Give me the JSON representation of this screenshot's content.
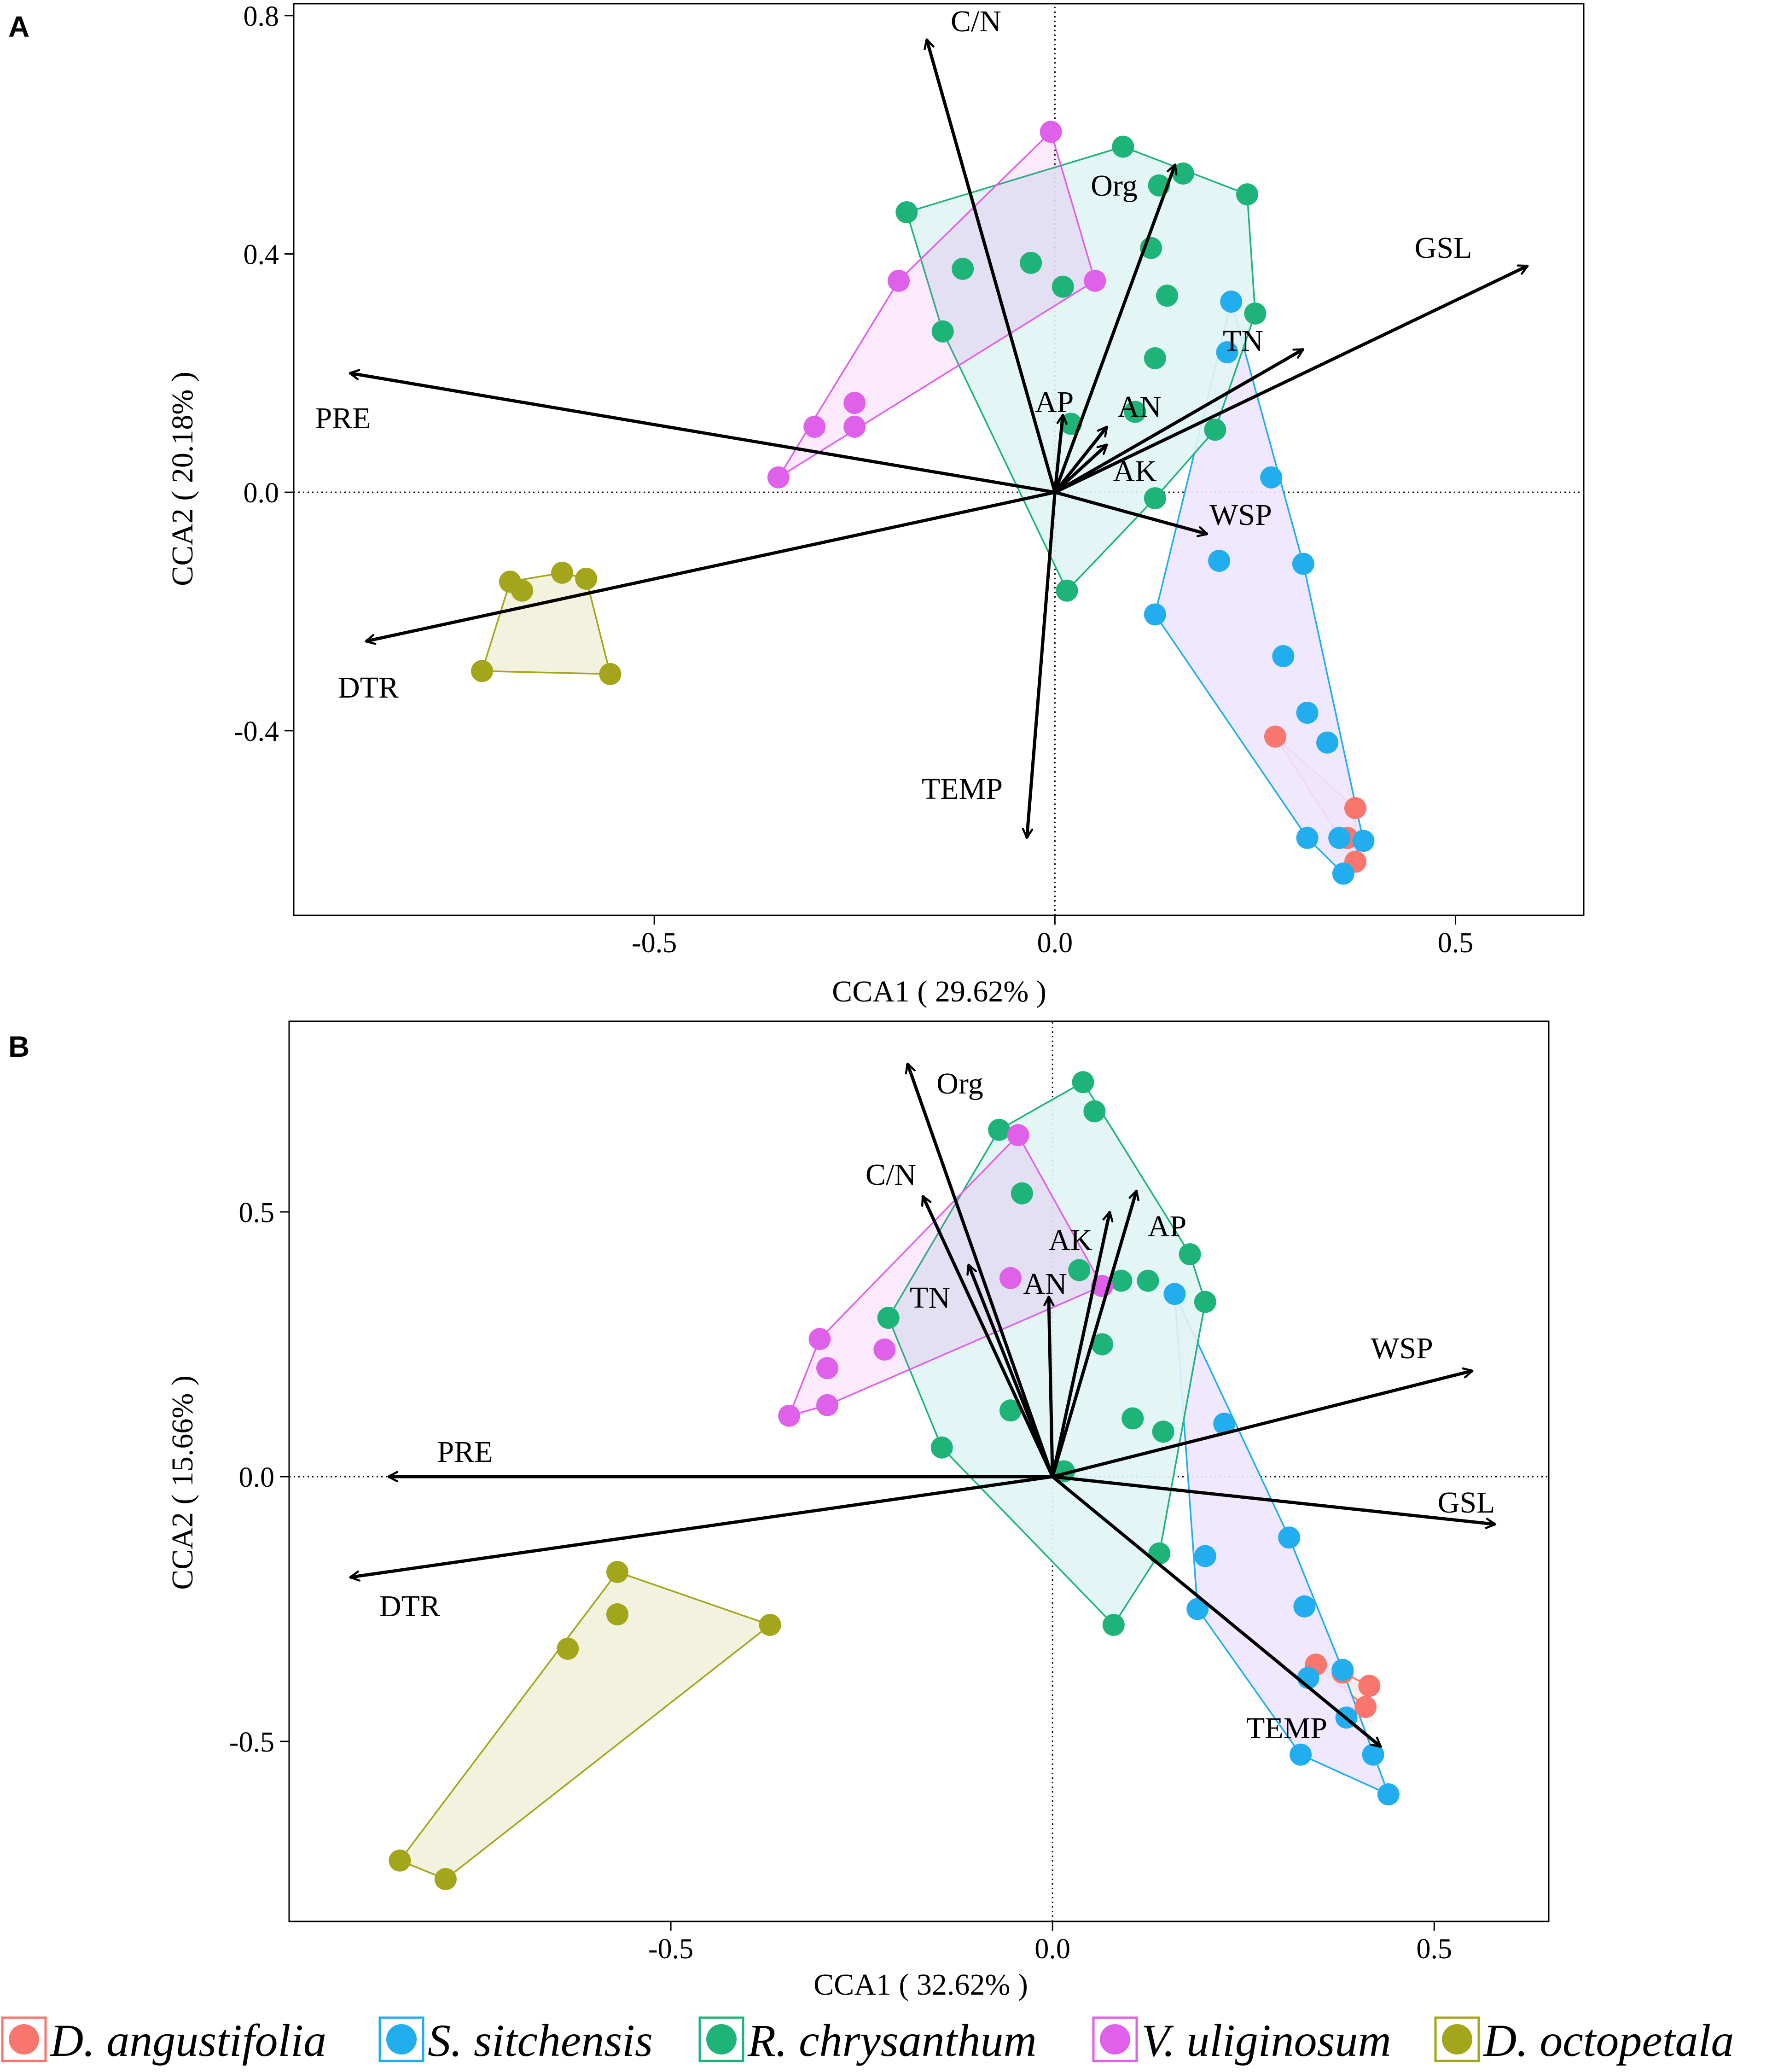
{
  "colors": {
    "D. angustifolia": "#F8766D",
    "S. sitchensis": "#22AEEE",
    "R. chrysanthum": "#1EB479",
    "V. uliginosum": "#E061E9",
    "D. octopetala": "#A3A51A",
    "hull_fill_S. sitchensis": "#ede6ff",
    "hull_fill_R. chrysanthum": "#e1f4f5"
  },
  "legend": {
    "items": [
      {
        "name": "D. angustifolia"
      },
      {
        "name": "S. sitchensis"
      },
      {
        "name": "R. chrysanthum"
      },
      {
        "name": "V. uliginosum"
      },
      {
        "name": "D. octopetala"
      }
    ]
  },
  "chart_data": [
    {
      "panel": "A",
      "type": "scatter",
      "xlabel": "CCA1 ( 29.62% )",
      "ylabel": "CCA2 ( 20.18% )",
      "xlim": [
        -0.95,
        0.66
      ],
      "ylim": [
        -0.71,
        0.82
      ],
      "xticks": [
        {
          "v": -0.5,
          "label": "-0.5"
        },
        {
          "v": 0.0,
          "label": "0.0"
        },
        {
          "v": 0.5,
          "label": "0.5"
        }
      ],
      "yticks": [
        {
          "v": -0.4,
          "label": "-0.4"
        },
        {
          "v": 0.0,
          "label": "0.0"
        },
        {
          "v": 0.4,
          "label": "0.4"
        },
        {
          "v": 0.8,
          "label": "0.8"
        }
      ],
      "vectors": [
        {
          "name": "C/N",
          "x": -0.16,
          "y": 0.76
        },
        {
          "name": "Org",
          "x": 0.15,
          "y": 0.55
        },
        {
          "name": "GSL",
          "x": 0.59,
          "y": 0.38
        },
        {
          "name": "TN",
          "x": 0.31,
          "y": 0.24
        },
        {
          "name": "PRE",
          "x": -0.88,
          "y": 0.2
        },
        {
          "name": "AP",
          "x": 0.01,
          "y": 0.13
        },
        {
          "name": "AN",
          "x": 0.065,
          "y": 0.11
        },
        {
          "name": "AK",
          "x": 0.065,
          "y": 0.08
        },
        {
          "name": "WSP",
          "x": 0.19,
          "y": -0.07
        },
        {
          "name": "DTR",
          "x": -0.86,
          "y": -0.25
        },
        {
          "name": "TEMP",
          "x": -0.035,
          "y": -0.58
        }
      ],
      "series": [
        {
          "name": "D. angustifolia",
          "points": [
            [
              0.275,
              -0.41
            ],
            [
              0.375,
              -0.53
            ],
            [
              0.375,
              -0.62
            ],
            [
              0.365,
              -0.58
            ]
          ]
        },
        {
          "name": "S. sitchensis",
          "points": [
            [
              0.22,
              0.32
            ],
            [
              0.215,
              0.235
            ],
            [
              0.27,
              0.025
            ],
            [
              0.205,
              -0.115
            ],
            [
              0.31,
              -0.12
            ],
            [
              0.125,
              -0.205
            ],
            [
              0.285,
              -0.275
            ],
            [
              0.315,
              -0.37
            ],
            [
              0.34,
              -0.42
            ],
            [
              0.315,
              -0.58
            ],
            [
              0.355,
              -0.58
            ],
            [
              0.385,
              -0.585
            ],
            [
              0.36,
              -0.64
            ]
          ]
        },
        {
          "name": "R. chrysanthum",
          "points": [
            [
              0.085,
              0.58
            ],
            [
              0.16,
              0.535
            ],
            [
              0.13,
              0.515
            ],
            [
              0.24,
              0.5
            ],
            [
              -0.185,
              0.47
            ],
            [
              0.12,
              0.41
            ],
            [
              -0.115,
              0.375
            ],
            [
              -0.03,
              0.385
            ],
            [
              0.01,
              0.345
            ],
            [
              0.14,
              0.33
            ],
            [
              0.25,
              0.3
            ],
            [
              -0.14,
              0.27
            ],
            [
              0.125,
              0.225
            ],
            [
              0.2,
              0.105
            ],
            [
              0.1,
              0.135
            ],
            [
              0.02,
              0.115
            ],
            [
              0.125,
              -0.01
            ],
            [
              0.015,
              -0.165
            ]
          ]
        },
        {
          "name": "V. uliginosum",
          "points": [
            [
              -0.005,
              0.605
            ],
            [
              -0.195,
              0.355
            ],
            [
              0.05,
              0.355
            ],
            [
              -0.25,
              0.15
            ],
            [
              -0.25,
              0.11
            ],
            [
              -0.3,
              0.11
            ],
            [
              -0.345,
              0.025
            ]
          ]
        },
        {
          "name": "D. octopetala",
          "points": [
            [
              -0.68,
              -0.15
            ],
            [
              -0.665,
              -0.165
            ],
            [
              -0.615,
              -0.135
            ],
            [
              -0.585,
              -0.145
            ],
            [
              -0.715,
              -0.3
            ],
            [
              -0.555,
              -0.305
            ]
          ]
        }
      ]
    },
    {
      "panel": "B",
      "type": "scatter",
      "xlabel": "CCA1 ( 32.62% )",
      "ylabel": "CCA2 ( 15.66% )",
      "xlim": [
        -1.0,
        0.65
      ],
      "ylim": [
        -0.84,
        0.86
      ],
      "xticks": [
        {
          "v": -0.5,
          "label": "-0.5"
        },
        {
          "v": 0.0,
          "label": "0.0"
        },
        {
          "v": 0.5,
          "label": "0.5"
        }
      ],
      "yticks": [
        {
          "v": -0.5,
          "label": "-0.5"
        },
        {
          "v": 0.0,
          "label": "0.0"
        },
        {
          "v": 0.5,
          "label": "0.5"
        }
      ],
      "vectors": [
        {
          "name": "Org",
          "x": -0.19,
          "y": 0.78
        },
        {
          "name": "C/N",
          "x": -0.17,
          "y": 0.53
        },
        {
          "name": "AP",
          "x": 0.11,
          "y": 0.54
        },
        {
          "name": "AK",
          "x": 0.075,
          "y": 0.5
        },
        {
          "name": "TN",
          "x": -0.11,
          "y": 0.4
        },
        {
          "name": "AN",
          "x": -0.005,
          "y": 0.34
        },
        {
          "name": "WSP",
          "x": 0.55,
          "y": 0.2
        },
        {
          "name": "GSL",
          "x": 0.58,
          "y": -0.09
        },
        {
          "name": "PRE",
          "x": -0.87,
          "y": 0.0
        },
        {
          "name": "DTR",
          "x": -0.92,
          "y": -0.19
        },
        {
          "name": "TEMP",
          "x": 0.43,
          "y": -0.51
        }
      ],
      "series": [
        {
          "name": "D. angustifolia",
          "points": [
            [
              0.345,
              -0.355
            ],
            [
              0.415,
              -0.395
            ],
            [
              0.41,
              -0.435
            ],
            [
              0.38,
              -0.37
            ]
          ]
        },
        {
          "name": "S. sitchensis",
          "points": [
            [
              0.16,
              0.345
            ],
            [
              0.225,
              0.1
            ],
            [
              0.31,
              -0.115
            ],
            [
              0.2,
              -0.15
            ],
            [
              0.33,
              -0.245
            ],
            [
              0.19,
              -0.25
            ],
            [
              0.335,
              -0.38
            ],
            [
              0.38,
              -0.365
            ],
            [
              0.385,
              -0.455
            ],
            [
              0.42,
              -0.525
            ],
            [
              0.325,
              -0.525
            ],
            [
              0.44,
              -0.6
            ]
          ]
        },
        {
          "name": "R. chrysanthum",
          "points": [
            [
              0.04,
              0.745
            ],
            [
              0.055,
              0.69
            ],
            [
              -0.07,
              0.655
            ],
            [
              -0.04,
              0.535
            ],
            [
              0.18,
              0.42
            ],
            [
              0.035,
              0.39
            ],
            [
              0.09,
              0.37
            ],
            [
              0.125,
              0.37
            ],
            [
              0.2,
              0.33
            ],
            [
              -0.215,
              0.3
            ],
            [
              0.065,
              0.25
            ],
            [
              -0.055,
              0.125
            ],
            [
              0.105,
              0.11
            ],
            [
              0.145,
              0.085
            ],
            [
              -0.145,
              0.055
            ],
            [
              0.015,
              0.01
            ],
            [
              0.14,
              -0.145
            ],
            [
              0.08,
              -0.28
            ]
          ]
        },
        {
          "name": "V. uliginosum",
          "points": [
            [
              -0.045,
              0.645
            ],
            [
              0.065,
              0.36
            ],
            [
              -0.055,
              0.375
            ],
            [
              -0.305,
              0.26
            ],
            [
              -0.295,
              0.205
            ],
            [
              -0.22,
              0.24
            ],
            [
              -0.345,
              0.115
            ],
            [
              -0.295,
              0.135
            ]
          ]
        },
        {
          "name": "D. octopetala",
          "points": [
            [
              -0.57,
              -0.18
            ],
            [
              -0.57,
              -0.26
            ],
            [
              -0.635,
              -0.325
            ],
            [
              -0.37,
              -0.28
            ],
            [
              -0.855,
              -0.725
            ],
            [
              -0.795,
              -0.76
            ]
          ]
        }
      ]
    }
  ]
}
